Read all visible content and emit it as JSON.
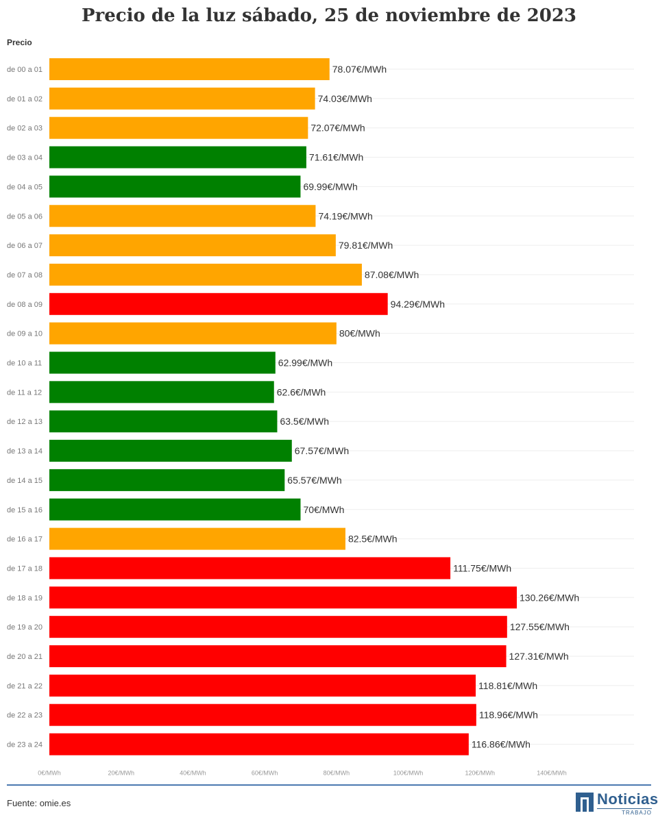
{
  "chart_data": {
    "type": "bar",
    "orientation": "horizontal",
    "title": "Precio de la luz sábado, 25 de noviembre de 2023",
    "ylabel": "Precio",
    "unit_suffix": "€/MWh",
    "categories": [
      "de 00 a 01",
      "de 01 a 02",
      "de 02 a 03",
      "de 03 a 04",
      "de 04 a 05",
      "de 05 a 06",
      "de 06 a 07",
      "de 07 a 08",
      "de 08 a 09",
      "de 09 a 10",
      "de 10 a 11",
      "de 11 a 12",
      "de 12 a 13",
      "de 13 a 14",
      "de 14 a 15",
      "de 15 a 16",
      "de 16 a 17",
      "de 17 a 18",
      "de 18 a 19",
      "de 19 a 20",
      "de 20 a 21",
      "de 21 a 22",
      "de 22 a 23",
      "de 23 a 24"
    ],
    "values": [
      78.07,
      74.03,
      72.07,
      71.61,
      69.99,
      74.19,
      79.81,
      87.08,
      94.29,
      80,
      62.99,
      62.6,
      63.5,
      67.57,
      65.57,
      70,
      82.5,
      111.75,
      130.26,
      127.55,
      127.31,
      118.81,
      118.96,
      116.86
    ],
    "value_labels": [
      "78.07€/MWh",
      "74.03€/MWh",
      "72.07€/MWh",
      "71.61€/MWh",
      "69.99€/MWh",
      "74.19€/MWh",
      "79.81€/MWh",
      "87.08€/MWh",
      "94.29€/MWh",
      "80€/MWh",
      "62.99€/MWh",
      "62.6€/MWh",
      "63.5€/MWh",
      "67.57€/MWh",
      "65.57€/MWh",
      "70€/MWh",
      "82.5€/MWh",
      "111.75€/MWh",
      "130.26€/MWh",
      "127.55€/MWh",
      "127.31€/MWh",
      "118.81€/MWh",
      "118.96€/MWh",
      "116.86€/MWh"
    ],
    "bar_colors": [
      "orange",
      "orange",
      "orange",
      "green",
      "green",
      "orange",
      "orange",
      "orange",
      "red",
      "orange",
      "green",
      "green",
      "green",
      "green",
      "green",
      "green",
      "orange",
      "red",
      "red",
      "red",
      "red",
      "red",
      "red",
      "red"
    ],
    "palette": {
      "green": "#008000",
      "orange": "#ffa500",
      "red": "#ff0000"
    },
    "xlim": [
      0,
      140
    ],
    "xticks": [
      0,
      20,
      40,
      60,
      80,
      100,
      120,
      140
    ],
    "xtick_labels": [
      "0€/MWh",
      "20€/MWh",
      "40€/MWh",
      "60€/MWh",
      "80€/MWh",
      "100€/MWh",
      "120€/MWh",
      "140€/MWh"
    ],
    "grid": true
  },
  "footer": {
    "source": "Fuente: omie.es",
    "logo_name": "Noticias",
    "logo_sub": "TRABAJO"
  },
  "colors": {
    "divider": "#4a78b0",
    "brand": "#2f5f8f"
  }
}
